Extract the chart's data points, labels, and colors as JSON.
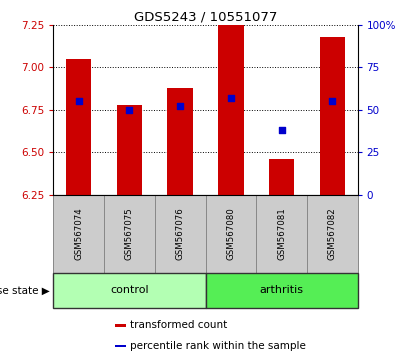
{
  "title": "GDS5243 / 10551077",
  "samples": [
    "GSM567074",
    "GSM567075",
    "GSM567076",
    "GSM567080",
    "GSM567081",
    "GSM567082"
  ],
  "bar_values": [
    7.05,
    6.78,
    6.88,
    7.25,
    6.46,
    7.18
  ],
  "percentile_values": [
    55,
    50,
    52,
    57,
    38,
    55
  ],
  "ylim": [
    6.25,
    7.25
  ],
  "y_ticks": [
    6.25,
    6.5,
    6.75,
    7.0,
    7.25
  ],
  "right_ylim": [
    0,
    100
  ],
  "right_yticks": [
    0,
    25,
    50,
    75,
    100
  ],
  "bar_color": "#cc0000",
  "percentile_color": "#0000cc",
  "control_color": "#b3ffb3",
  "arthritis_color": "#55ee55",
  "sample_box_color": "#cccccc",
  "group_labels": [
    "control",
    "arthritis"
  ],
  "control_indices": [
    0,
    1,
    2
  ],
  "arthritis_indices": [
    3,
    4,
    5
  ],
  "disease_state_label": "disease state",
  "legend_bar_label": "transformed count",
  "legend_percentile_label": "percentile rank within the sample",
  "tick_label_color_left": "#cc0000",
  "tick_label_color_right": "#0000cc",
  "bar_bottom": 6.25,
  "bar_width": 0.5
}
